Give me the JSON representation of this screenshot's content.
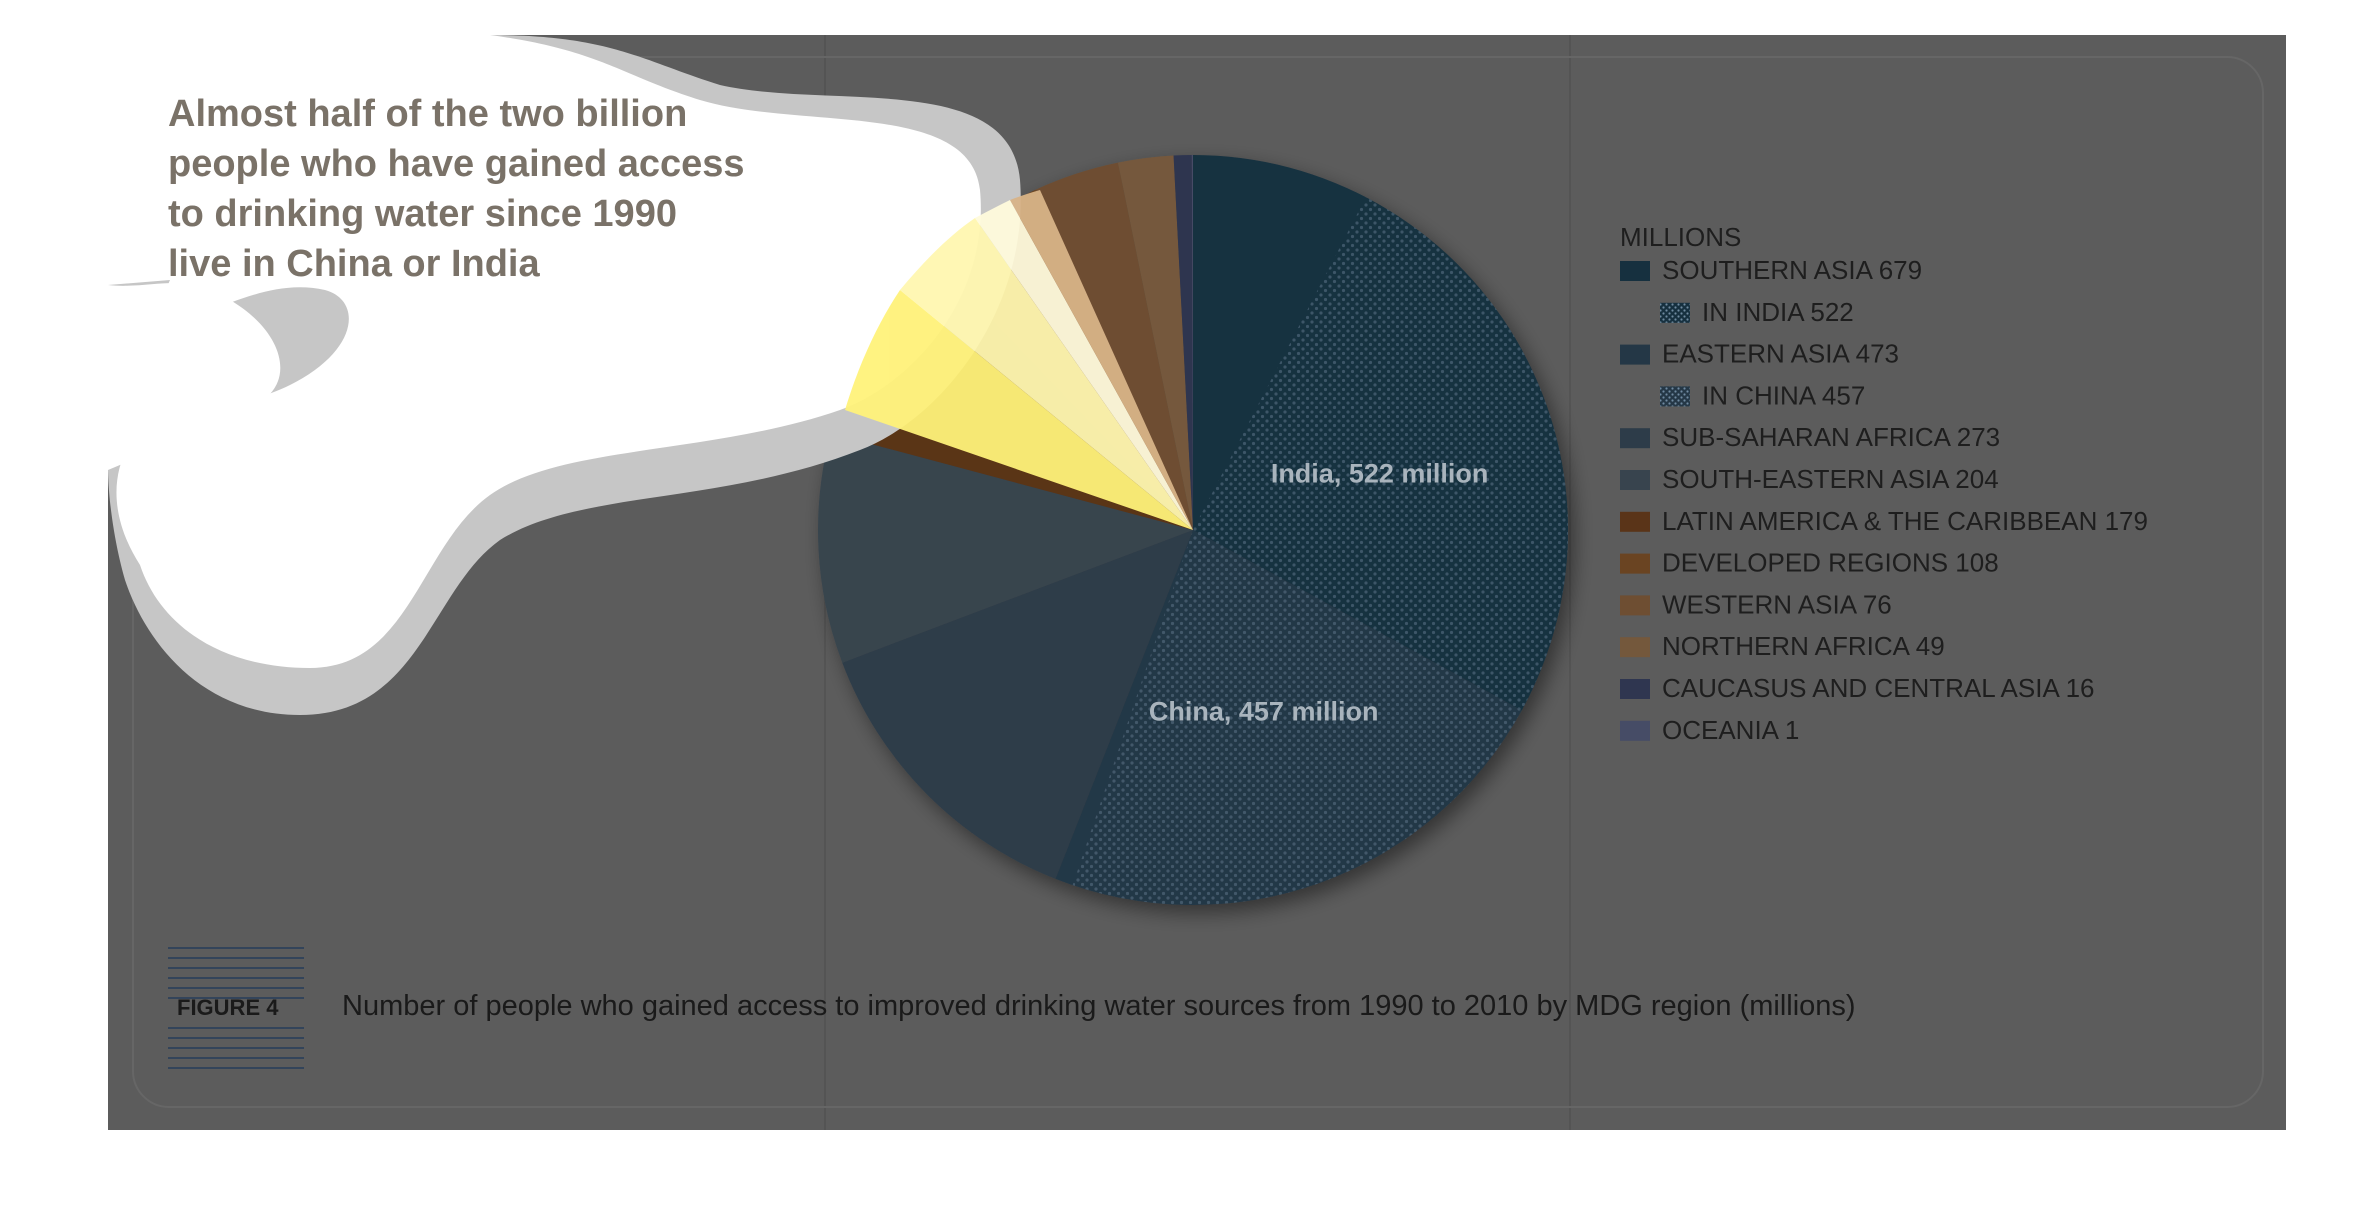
{
  "headline": {
    "lines": [
      "Almost half of the two billion",
      "people who have gained access",
      "to drinking water since 1990",
      "live in China or India"
    ]
  },
  "legend": {
    "unit_label": "MILLIONS",
    "items": [
      {
        "label": "SOUTHERN ASIA 679",
        "color": "#16303f",
        "pattern": false,
        "indent": false
      },
      {
        "label": "IN INDIA 522",
        "color": "#16303f",
        "pattern": true,
        "indent": true
      },
      {
        "label": "EASTERN ASIA 473",
        "color": "#243746",
        "pattern": false,
        "indent": false
      },
      {
        "label": "IN CHINA 457",
        "color": "#243746",
        "pattern": true,
        "indent": true
      },
      {
        "label": "SUB-SAHARAN AFRICA 273",
        "color": "#2d3c49",
        "pattern": false,
        "indent": false
      },
      {
        "label": "SOUTH-EASTERN ASIA 204",
        "color": "#38444e",
        "pattern": false,
        "indent": false
      },
      {
        "label": "LATIN AMERICA & THE CARIBBEAN 179",
        "color": "#5a3418",
        "pattern": false,
        "indent": false
      },
      {
        "label": "DEVELOPED REGIONS 108",
        "color": "#6a4422",
        "pattern": false,
        "indent": false
      },
      {
        "label": "WESTERN ASIA 76",
        "color": "#6e4e32",
        "pattern": false,
        "indent": false
      },
      {
        "label": "NORTHERN AFRICA 49",
        "color": "#74583c",
        "pattern": false,
        "indent": false
      },
      {
        "label": "CAUCASUS AND CENTRAL ASIA 16",
        "color": "#2f3650",
        "pattern": false,
        "indent": false
      },
      {
        "label": "OCEANIA 1",
        "color": "#464c66",
        "pattern": false,
        "indent": false
      }
    ]
  },
  "figure": {
    "label": "FIGURE 4",
    "caption": "Number of people who gained access to improved drinking water sources from 1990 to 2010 by MDG region (millions)"
  },
  "chart_data": {
    "type": "pie",
    "title": "Almost half of the two billion people who have gained access to drinking water since 1990 live in China or India",
    "unit": "MILLIONS",
    "slices": [
      {
        "name": "SOUTHERN ASIA",
        "value": 679,
        "color": "#16303f",
        "sub": {
          "name": "IN INDIA",
          "value": 522,
          "label": "India, 522 million"
        }
      },
      {
        "name": "EASTERN ASIA",
        "value": 473,
        "color": "#243746",
        "sub": {
          "name": "IN CHINA",
          "value": 457,
          "label": "China, 457 million"
        }
      },
      {
        "name": "SUB-SAHARAN AFRICA",
        "value": 273,
        "color": "#2d3c49"
      },
      {
        "name": "SOUTH-EASTERN ASIA",
        "value": 204,
        "color": "#38444e"
      },
      {
        "name": "LATIN AMERICA & THE CARIBBEAN",
        "value": 179,
        "color": "#5a3418"
      },
      {
        "name": "DEVELOPED REGIONS",
        "value": 108,
        "color": "#6a4422"
      },
      {
        "name": "WESTERN ASIA",
        "value": 76,
        "color": "#6e4e32"
      },
      {
        "name": "NORTHERN AFRICA",
        "value": 49,
        "color": "#74583c"
      },
      {
        "name": "CAUCASUS AND CENTRAL ASIA",
        "value": 16,
        "color": "#2f3650"
      },
      {
        "name": "OCEANIA",
        "value": 1,
        "color": "#464c66"
      }
    ],
    "start_angle": "12 o'clock, clockwise",
    "legend_position": "right"
  }
}
